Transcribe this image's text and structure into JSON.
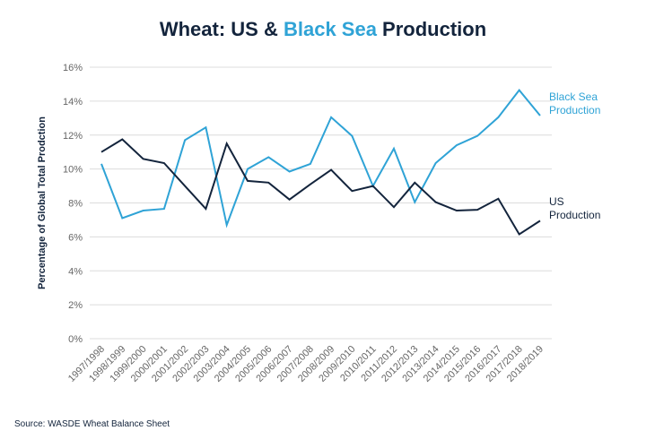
{
  "chart_data": {
    "type": "line",
    "title_parts": [
      "Wheat: US & ",
      "Black Sea",
      " Production"
    ],
    "ylabel": "Percentage of Global Total Prodction",
    "xlabel": "",
    "ylim": [
      0,
      16
    ],
    "yticks": [
      "0%",
      "2%",
      "4%",
      "6%",
      "8%",
      "10%",
      "12%",
      "14%",
      "16%"
    ],
    "grid": true,
    "categories": [
      "1997/1998",
      "1998/1999",
      "1999/2000",
      "2000/2001",
      "2001/2002",
      "2002/2003",
      "2003/2004",
      "2004/2005",
      "2005/2006",
      "2006/2007",
      "2007/2008",
      "2008/2009",
      "2009/2010",
      "2010/2011",
      "2011/2012",
      "2012/2013",
      "2013/2014",
      "2014/2015",
      "2015/2016",
      "2016/2017",
      "2017/2018",
      "2018/2019"
    ],
    "series": [
      {
        "name": "Black Sea Production",
        "label_lines": [
          "Black Sea",
          "Production"
        ],
        "color": "#2fa3d6",
        "values": [
          10.3,
          7.1,
          7.55,
          7.65,
          11.7,
          12.45,
          6.7,
          10.0,
          10.7,
          9.85,
          10.3,
          13.05,
          11.95,
          9.0,
          11.2,
          8.05,
          10.35,
          11.4,
          11.95,
          13.05,
          14.65,
          13.15
        ]
      },
      {
        "name": "US Production",
        "label_lines": [
          "US",
          "Production"
        ],
        "color": "#13243c",
        "values": [
          11.0,
          11.75,
          10.6,
          10.35,
          9.0,
          7.65,
          11.5,
          9.3,
          9.2,
          8.2,
          9.1,
          9.95,
          8.7,
          9.0,
          7.75,
          9.2,
          8.05,
          7.55,
          7.6,
          8.25,
          6.15,
          6.95
        ]
      }
    ],
    "legend": "right-end-labels"
  },
  "source": "Source: WASDE Wheat Balance Sheet"
}
